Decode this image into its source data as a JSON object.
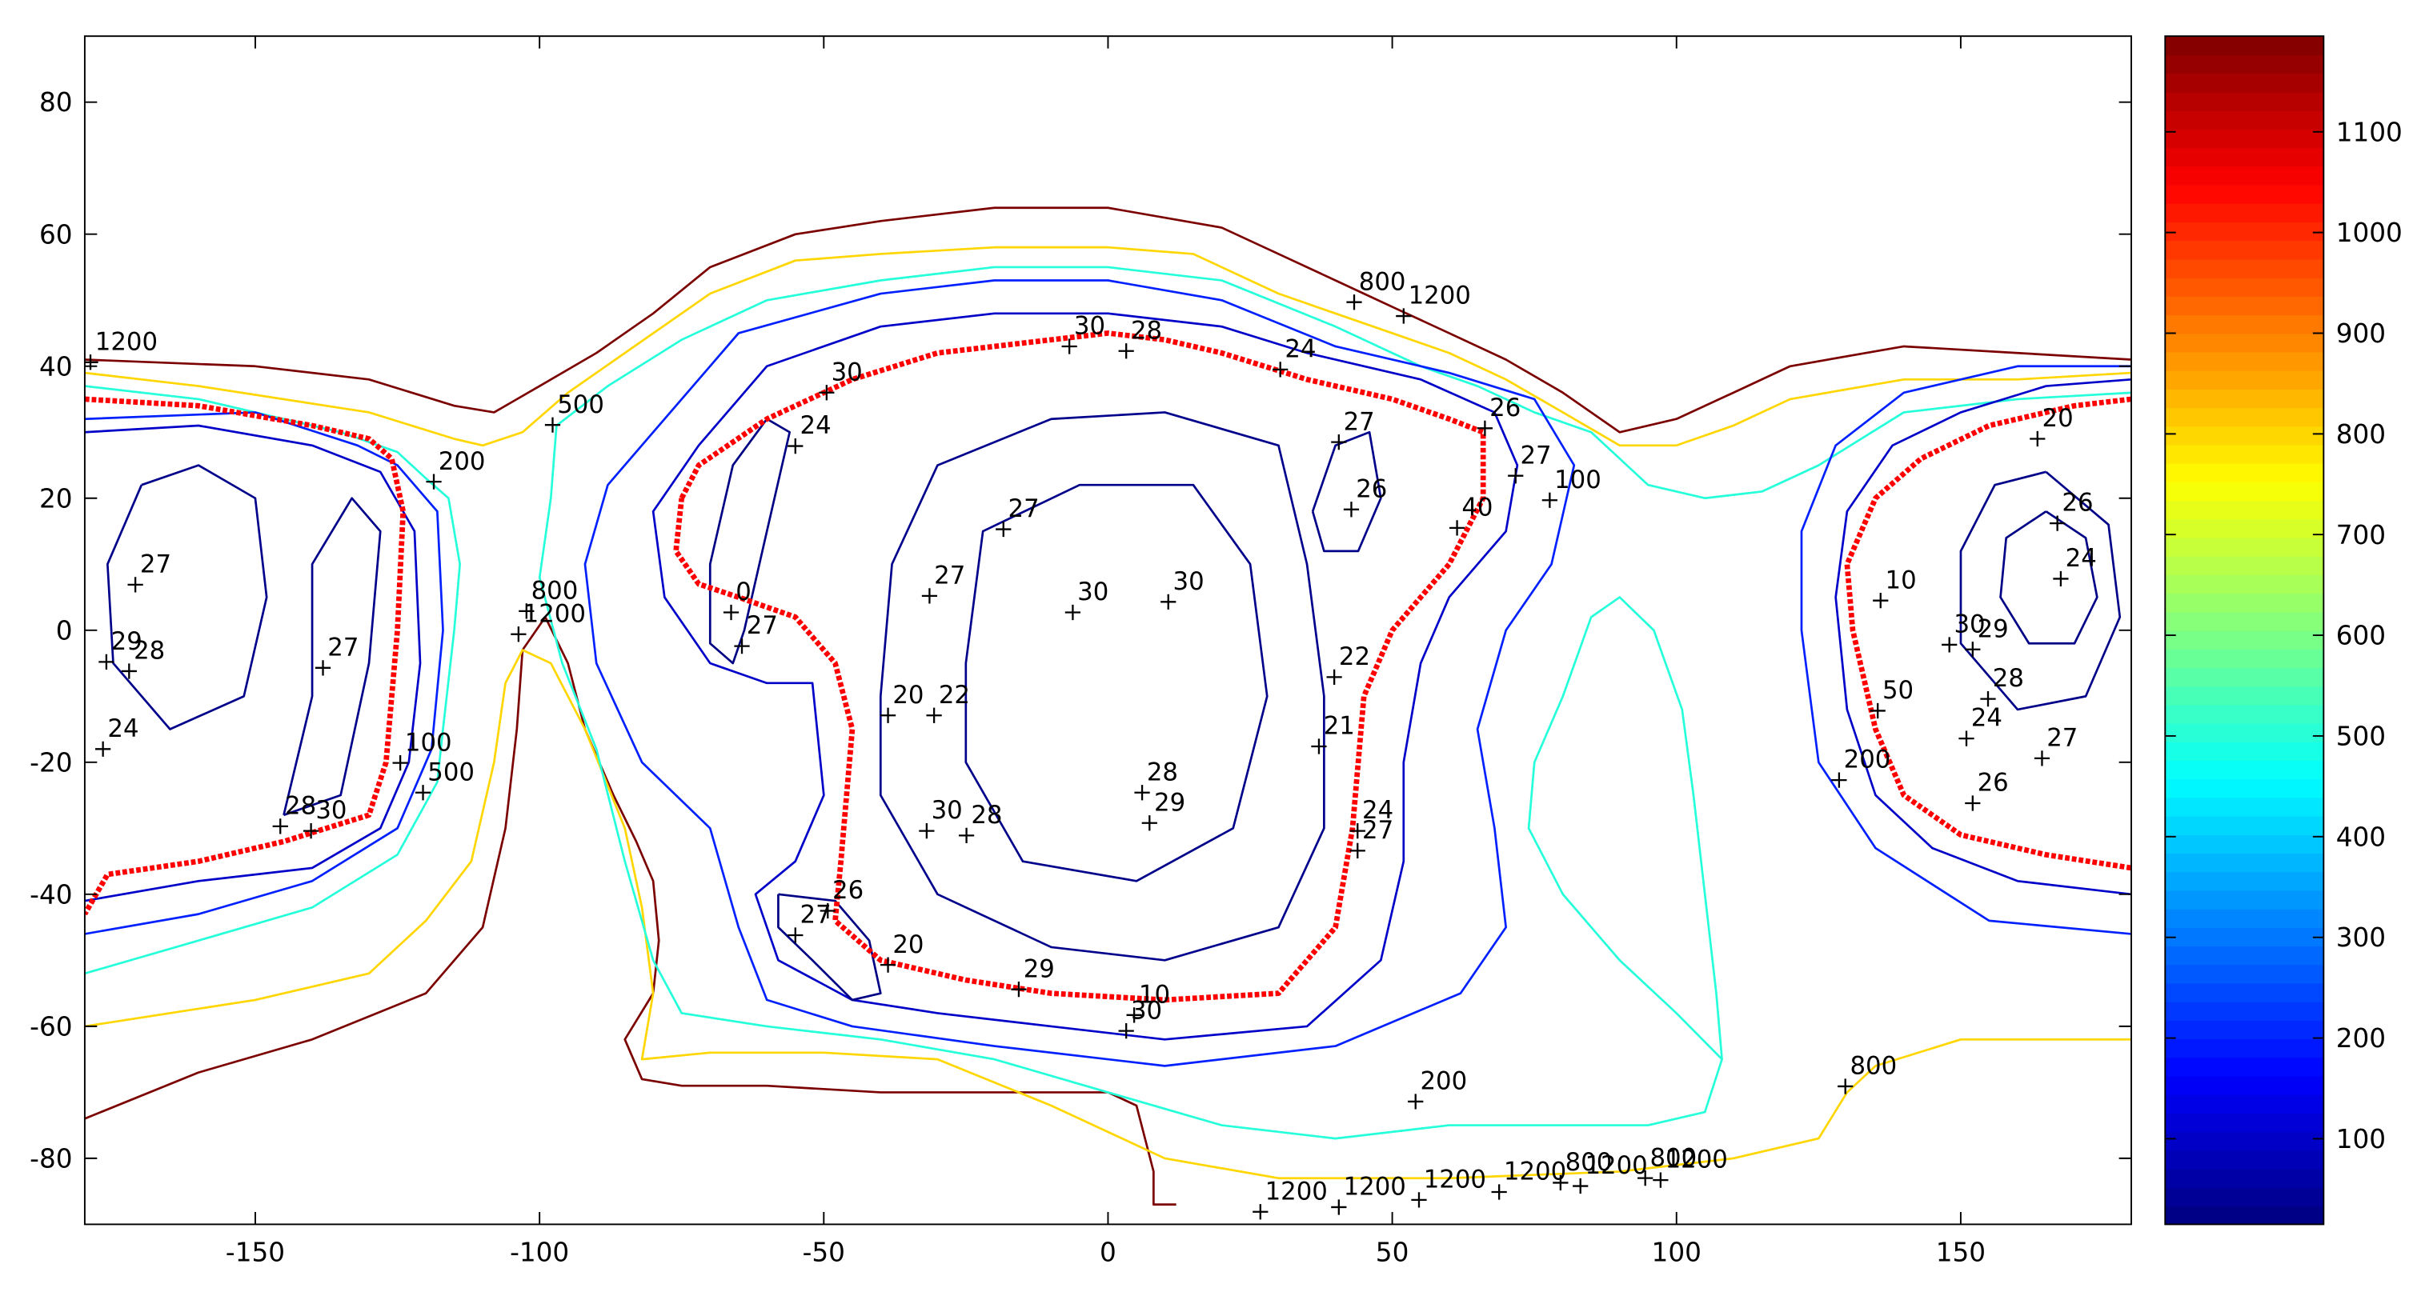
{
  "chart_data": {
    "type": "contour",
    "xlim": [
      -180,
      180
    ],
    "ylim": [
      -90,
      90
    ],
    "xticks": [
      -150,
      -100,
      -50,
      0,
      50,
      100,
      150
    ],
    "yticks": [
      -80,
      -60,
      -40,
      -20,
      0,
      20,
      40,
      60,
      80
    ],
    "clim": [
      15,
      1195
    ],
    "cticks": [
      100,
      200,
      300,
      400,
      500,
      600,
      700,
      800,
      900,
      1000,
      1100
    ],
    "contours": [
      {
        "level": 1200,
        "x": [
          -180,
          -150,
          -130,
          -115,
          -108,
          -100,
          -90,
          -80,
          -70,
          -55,
          -40,
          -20,
          0,
          20,
          30,
          40,
          50,
          60,
          70,
          80,
          90,
          100,
          110,
          120,
          140,
          160,
          180
        ],
        "y": [
          41,
          40,
          38,
          34,
          33,
          37,
          42,
          48,
          55,
          60,
          62,
          64,
          64,
          61,
          57,
          53,
          49,
          45,
          41,
          36,
          30,
          32,
          36,
          40,
          43,
          42,
          41
        ]
      },
      {
        "level": 1200,
        "x": [
          -180,
          -160,
          -140,
          -120,
          -110,
          -106,
          -104,
          -103,
          -99,
          -95,
          -92,
          -87,
          -83,
          -80,
          -79,
          -80,
          -85,
          -82,
          -75,
          -60,
          -40,
          -20,
          0,
          5,
          8,
          8,
          12
        ],
        "y": [
          -74,
          -67,
          -62,
          -55,
          -45,
          -30,
          -15,
          -3,
          2,
          -5,
          -15,
          -25,
          -32,
          -38,
          -47,
          -55,
          -62,
          -68,
          -69,
          -69,
          -70,
          -70,
          -70,
          -72,
          -82,
          -87,
          -87
        ]
      },
      {
        "level": 800,
        "x": [
          -180,
          -160,
          -130,
          -115,
          -110,
          -103,
          -95,
          -85,
          -70,
          -55,
          -40,
          -20,
          0,
          15,
          30,
          40,
          50,
          60,
          70,
          80,
          90,
          100,
          110,
          120,
          140,
          160,
          180
        ],
        "y": [
          39,
          37,
          33,
          29,
          28,
          30,
          36,
          42,
          51,
          56,
          57,
          58,
          58,
          57,
          51,
          48,
          45,
          42,
          38,
          33,
          28,
          28,
          31,
          35,
          38,
          38,
          39
        ]
      },
      {
        "level": 800,
        "x": [
          -180,
          -150,
          -130,
          -120,
          -112,
          -108,
          -106,
          -103,
          -98,
          -92,
          -85,
          -82,
          -80,
          -82,
          -70,
          -50,
          -30,
          -10,
          10,
          30,
          60,
          90,
          110,
          125,
          130,
          135,
          150,
          170,
          180
        ],
        "y": [
          -60,
          -56,
          -52,
          -44,
          -35,
          -20,
          -8,
          -3,
          -5,
          -15,
          -30,
          -42,
          -55,
          -65,
          -64,
          -64,
          -65,
          -72,
          -80,
          -83,
          -83,
          -82,
          -80,
          -77,
          -70,
          -66,
          -62,
          -62,
          -62
        ]
      },
      {
        "level": 500,
        "x": [
          -180,
          -160,
          -135,
          -125,
          -120,
          -116,
          -114,
          -115,
          -117,
          -118,
          -125,
          -140,
          -160,
          -180
        ],
        "y": [
          37,
          35,
          30,
          27,
          23,
          20,
          10,
          0,
          -15,
          -23,
          -34,
          -42,
          -47,
          -52
        ]
      },
      {
        "level": 500,
        "x": [
          180,
          160,
          140,
          125,
          115,
          105,
          95,
          85,
          75,
          65,
          55,
          40,
          20,
          0,
          -20,
          -40,
          -60,
          -75,
          -88,
          -97,
          -98,
          -100,
          -96,
          -90,
          -85,
          -80,
          -75,
          -60,
          -40,
          -20,
          0,
          20,
          40,
          60,
          80,
          95,
          105,
          108,
          107,
          105,
          103,
          101,
          96,
          90,
          85,
          80,
          75,
          74,
          80,
          90,
          100,
          108
        ],
        "y": [
          36,
          35,
          33,
          25,
          21,
          20,
          22,
          30,
          33,
          37,
          40,
          46,
          53,
          55,
          55,
          53,
          50,
          44,
          37,
          31,
          20,
          8,
          -5,
          -18,
          -35,
          -50,
          -58,
          -60,
          -62,
          -65,
          -70,
          -75,
          -77,
          -75,
          -75,
          -75,
          -73,
          -65,
          -55,
          -40,
          -25,
          -12,
          0,
          5,
          2,
          -10,
          -20,
          -30,
          -40,
          -50,
          -58,
          -65
        ]
      },
      {
        "level": 200,
        "x": [
          -80,
          -65,
          -40,
          -20,
          0,
          20,
          40,
          60,
          75,
          82,
          78,
          70,
          65,
          68,
          70,
          62,
          40,
          10,
          -20,
          -45,
          -60,
          -65,
          -70,
          -82,
          -90,
          -92,
          -88,
          -80
        ],
        "y": [
          30,
          45,
          51,
          53,
          53,
          50,
          43,
          39,
          35,
          25,
          10,
          0,
          -15,
          -30,
          -45,
          -55,
          -63,
          -66,
          -63,
          -60,
          -56,
          -45,
          -30,
          -20,
          -5,
          10,
          22,
          30
        ]
      },
      {
        "level": 100,
        "x": [
          -72,
          -60,
          -40,
          -20,
          0,
          20,
          35,
          55,
          68,
          72,
          70,
          60,
          55,
          52,
          52,
          48,
          35,
          10,
          -10,
          -30,
          -45,
          -58,
          -62,
          -55,
          -50,
          -52,
          -60,
          -70,
          -78,
          -80,
          -72
        ],
        "y": [
          28,
          40,
          46,
          48,
          48,
          46,
          42,
          38,
          33,
          25,
          15,
          5,
          -5,
          -20,
          -35,
          -50,
          -60,
          -62,
          -60,
          -58,
          -56,
          -50,
          -40,
          -35,
          -25,
          -8,
          -8,
          -5,
          5,
          18,
          28
        ]
      },
      {
        "level": 30,
        "x": [
          -40,
          -38,
          -30,
          -10,
          10,
          30,
          35,
          38,
          38,
          30,
          10,
          -10,
          -30,
          -40,
          -40
        ],
        "y": [
          -10,
          10,
          25,
          32,
          33,
          28,
          10,
          -10,
          -30,
          -45,
          -50,
          -48,
          -40,
          -25,
          -10
        ]
      },
      {
        "level": 27,
        "x": [
          -25,
          -22,
          -5,
          15,
          25,
          28,
          22,
          5,
          -15,
          -25,
          -25
        ],
        "y": [
          -5,
          15,
          22,
          22,
          10,
          -10,
          -30,
          -38,
          -35,
          -20,
          -5
        ]
      },
      {
        "level": 26,
        "x": [
          36,
          40,
          46,
          48,
          44,
          38,
          36
        ],
        "y": [
          18,
          28,
          30,
          20,
          12,
          12,
          18
        ]
      },
      {
        "level": 20,
        "x": [
          -60,
          -56,
          -60,
          -64,
          -66,
          -70,
          -70,
          -66,
          -60
        ],
        "y": [
          32,
          30,
          15,
          0,
          -5,
          -2,
          10,
          25,
          32
        ]
      },
      {
        "level": 20,
        "x": [
          -58,
          -48,
          -42,
          -40,
          -45,
          -52,
          -58,
          -58
        ],
        "y": [
          -40,
          -41,
          -47,
          -55,
          -56,
          -50,
          -45,
          -40
        ]
      },
      {
        "level": 100,
        "x": [
          -180,
          -160,
          -140,
          -128,
          -122,
          -121,
          -123,
          -128,
          -140,
          -160,
          -180
        ],
        "y": [
          30,
          31,
          28,
          24,
          15,
          -5,
          -20,
          -30,
          -36,
          -38,
          -41
        ]
      },
      {
        "level": 200,
        "x": [
          -180,
          -150,
          -132,
          -125,
          -118,
          -117,
          -119,
          -125,
          -140,
          -160,
          -180
        ],
        "y": [
          32,
          33,
          28,
          25,
          18,
          0,
          -18,
          -30,
          -38,
          -43,
          -46
        ]
      },
      {
        "level": 28,
        "x": [
          -170,
          -160,
          -150,
          -148,
          -152,
          -165,
          -175,
          -176,
          -170
        ],
        "y": [
          22,
          25,
          20,
          5,
          -10,
          -15,
          -5,
          10,
          22
        ]
      },
      {
        "level": 27,
        "x": [
          -145,
          -140,
          -140,
          -133,
          -128,
          -130,
          -135,
          -145
        ],
        "y": [
          -28,
          -10,
          10,
          20,
          15,
          -5,
          -25,
          -28
        ]
      },
      {
        "level": 100,
        "x": [
          180,
          165,
          150,
          138,
          130,
          128,
          130,
          135,
          145,
          160,
          180
        ],
        "y": [
          38,
          37,
          33,
          28,
          18,
          5,
          -12,
          -25,
          -33,
          -38,
          -40
        ]
      },
      {
        "level": 200,
        "x": [
          180,
          160,
          140,
          128,
          122,
          122,
          125,
          135,
          155,
          180
        ],
        "y": [
          40,
          40,
          36,
          28,
          15,
          0,
          -20,
          -33,
          -44,
          -46
        ]
      },
      {
        "level": 24,
        "x": [
          165,
          172,
          174,
          170,
          162,
          157,
          158,
          165
        ],
        "y": [
          18,
          14,
          5,
          -2,
          -2,
          5,
          14,
          18
        ]
      },
      {
        "level": 26,
        "x": [
          165,
          176,
          178,
          172,
          160,
          150,
          150,
          156,
          165
        ],
        "y": [
          24,
          16,
          2,
          -10,
          -12,
          -2,
          12,
          22,
          24
        ]
      }
    ],
    "track": {
      "color": "#ff0000",
      "x": [
        -180,
        -160,
        -140,
        -130,
        -126,
        -124,
        -125,
        -127,
        -130,
        -145,
        -160,
        -176,
        -180,
        null,
        -75,
        -72,
        -60,
        -45,
        -30,
        -10,
        0,
        10,
        20,
        35,
        50,
        60,
        66,
        66,
        60,
        50,
        45,
        43,
        40,
        30,
        10,
        -10,
        -25,
        -40,
        -48,
        -47,
        -45,
        -48,
        -55,
        -65,
        -72,
        -76,
        -75,
        null,
        180,
        170,
        155,
        143,
        135,
        130,
        131,
        135,
        140,
        150,
        165,
        180
      ],
      "y": [
        35,
        34,
        31,
        29,
        26,
        18,
        0,
        -20,
        -28,
        -32,
        -35,
        -37,
        -43,
        null,
        20,
        25,
        32,
        38,
        42,
        44,
        45,
        44,
        42,
        38,
        35,
        32,
        30,
        20,
        10,
        0,
        -10,
        -30,
        -45,
        -55,
        -56,
        -55,
        -53,
        -50,
        -44,
        -35,
        -15,
        -5,
        2,
        5,
        7,
        12,
        20,
        null,
        35,
        34,
        31,
        26,
        20,
        10,
        0,
        -15,
        -25,
        -31,
        -34,
        -36
      ]
    },
    "contour_labels": [
      {
        "x": 43.3,
        "y": 49.7,
        "text": 800
      },
      {
        "x": 52,
        "y": 47.6,
        "text": 1200
      },
      {
        "x": -97.7,
        "y": 31.1,
        "text": 500
      },
      {
        "x": -118.6,
        "y": 22.5,
        "text": 200
      },
      {
        "x": -102.3,
        "y": 2.9,
        "text": 800
      },
      {
        "x": -103.7,
        "y": -0.6,
        "text": 1200
      },
      {
        "x": 77.7,
        "y": 19.7,
        "text": 100
      },
      {
        "x": 61.4,
        "y": 15.5,
        "text": 40
      },
      {
        "x": -18.4,
        "y": 15.3,
        "text": 27
      },
      {
        "x": 42.8,
        "y": 18.3,
        "text": 26
      },
      {
        "x": 40.6,
        "y": 28.5,
        "text": 27
      },
      {
        "x": -171.1,
        "y": 6.9,
        "text": 27
      },
      {
        "x": -6.2,
        "y": 2.7,
        "text": 30
      },
      {
        "x": 10.6,
        "y": 4.3,
        "text": 30
      },
      {
        "x": -31.4,
        "y": 5.2,
        "text": 27
      },
      {
        "x": 6,
        "y": -24.6,
        "text": 28
      },
      {
        "x": 7.3,
        "y": -29.2,
        "text": 29
      },
      {
        "x": -31.9,
        "y": -30.4,
        "text": 30
      },
      {
        "x": -24.9,
        "y": -31.1,
        "text": 28
      },
      {
        "x": -49.3,
        "y": -42.5,
        "text": 26
      },
      {
        "x": -15.7,
        "y": -54.4,
        "text": 29
      },
      {
        "x": 167.6,
        "y": 7.8,
        "text": 24
      },
      {
        "x": 154.8,
        "y": -10.4,
        "text": 28
      },
      {
        "x": 151,
        "y": -16.4,
        "text": 24
      },
      {
        "x": 164.3,
        "y": -19.4,
        "text": 27
      },
      {
        "x": 152.1,
        "y": -26.2,
        "text": 26
      },
      {
        "x": 128.6,
        "y": -22.7,
        "text": 200
      },
      {
        "x": 54.1,
        "y": -71.4,
        "text": 200
      },
      {
        "x": 129.7,
        "y": -69.1,
        "text": 800
      },
      {
        "x": 26.8,
        "y": -88.1,
        "text": 1200
      },
      {
        "x": 40.6,
        "y": -87.4,
        "text": 1200
      },
      {
        "x": 54.7,
        "y": -86.3,
        "text": 1200
      },
      {
        "x": 68.8,
        "y": -85.1,
        "text": 1200
      },
      {
        "x": 79.6,
        "y": -83.7,
        "text": 800
      },
      {
        "x": 83.1,
        "y": -84.2,
        "text": 1200
      },
      {
        "x": 94.5,
        "y": -83,
        "text": 800
      },
      {
        "x": 97.2,
        "y": -83.3,
        "text": 1200
      },
      {
        "x": -124.5,
        "y": -20.1,
        "text": 100
      },
      {
        "x": -120.5,
        "y": -24.6,
        "text": 500
      },
      {
        "x": -176.2,
        "y": -4.8,
        "text": 29
      },
      {
        "x": -172.2,
        "y": -6.2,
        "text": 28
      },
      {
        "x": -176.8,
        "y": -18,
        "text": 24
      },
      {
        "x": -145.6,
        "y": -29.7,
        "text": 28
      },
      {
        "x": -140.2,
        "y": -30.4,
        "text": 30
      },
      {
        "x": -138.1,
        "y": -5.7,
        "text": 27
      },
      {
        "x": -179,
        "y": 40.6,
        "text": 1200
      },
      {
        "x": -6.8,
        "y": 43,
        "text": 30
      },
      {
        "x": 3.2,
        "y": 42.3,
        "text": 28
      },
      {
        "x": 30.3,
        "y": 39.5,
        "text": 24
      },
      {
        "x": 66.3,
        "y": 30.6,
        "text": 26
      },
      {
        "x": 71.7,
        "y": 23.4,
        "text": 27
      },
      {
        "x": -55,
        "y": 27.9,
        "text": 24
      },
      {
        "x": -49.5,
        "y": 36,
        "text": 30
      },
      {
        "x": 39.8,
        "y": -7.1,
        "text": 22
      },
      {
        "x": 37.1,
        "y": -17.6,
        "text": 21
      },
      {
        "x": 43.9,
        "y": -30.4,
        "text": 24
      },
      {
        "x": 43.9,
        "y": -33.4,
        "text": 27
      },
      {
        "x": -38.7,
        "y": -12.9,
        "text": 20
      },
      {
        "x": -30.6,
        "y": -12.9,
        "text": 22
      },
      {
        "x": 135.9,
        "y": 4.5,
        "text": 10
      },
      {
        "x": 135.4,
        "y": -12.2,
        "text": 50
      },
      {
        "x": 148,
        "y": -2.2,
        "text": 30
      },
      {
        "x": 152.1,
        "y": -2.9,
        "text": 29
      },
      {
        "x": 163.5,
        "y": 29,
        "text": 20
      },
      {
        "x": 167,
        "y": 16.2,
        "text": 26
      },
      {
        "x": -66.3,
        "y": 2.7,
        "text": 0
      },
      {
        "x": -64.4,
        "y": -2.4,
        "text": 27
      },
      {
        "x": -38.7,
        "y": -50.7,
        "text": 20
      },
      {
        "x": -55,
        "y": -46.2,
        "text": 27
      },
      {
        "x": 4.6,
        "y": -58.3,
        "text": 10
      },
      {
        "x": 3.2,
        "y": -60.7,
        "text": 30
      }
    ]
  }
}
